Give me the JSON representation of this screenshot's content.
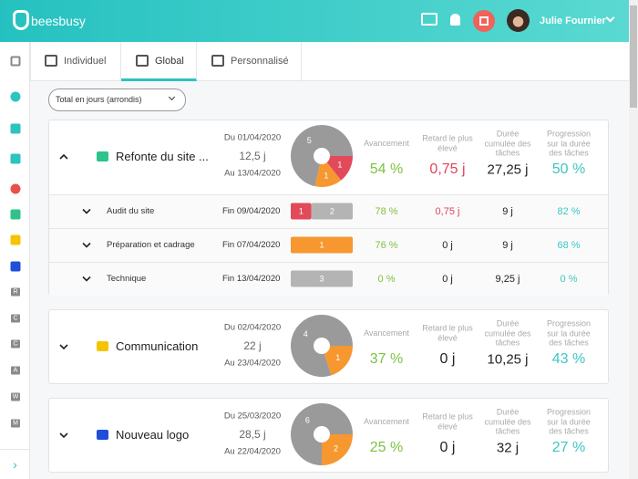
{
  "header": {
    "logo": "beesbusy",
    "user": "Julie Fournier"
  },
  "sidebar": {
    "letters": [
      "R",
      "C",
      "C",
      "A",
      "W",
      "M"
    ]
  },
  "tabs": [
    "Individuel",
    "Global",
    "Personnalisé"
  ],
  "filter": "Total en jours (arrondis)",
  "columns": [
    "Avancement",
    "Retard le plus élevé",
    "Durée cumulée des tâches",
    "Progression sur la durée des tâches"
  ],
  "projects": [
    {
      "name": "Refonte du site ...",
      "color": "#2dc38b",
      "start": "Du 01/04/2020",
      "duration": "12,5 j",
      "end": "Au 13/04/2020",
      "tasks": [
        {
          "count": 1,
          "color": "#e24a5a"
        },
        {
          "count": 1,
          "color": "#f7972f"
        },
        {
          "count": 5,
          "color": "#9a9a9a"
        }
      ],
      "stats": [
        "54 %",
        "0,75 j",
        "27,25 j",
        "50 %"
      ],
      "rows": [
        {
          "name": "Audit du site",
          "end": "Fin 09/04/2020",
          "tasks": [
            {
              "count": 1,
              "color": "#e24a5a"
            },
            {
              "count": 2,
              "color": "#b4b4b4"
            }
          ],
          "stats": [
            "78 %",
            "0,75 j",
            "9 j",
            "82 %"
          ]
        },
        {
          "name": "Préparation et cadrage",
          "end": "Fin 07/04/2020",
          "tasks": [
            {
              "count": 1,
              "color": "#f7972f"
            }
          ],
          "stats": [
            "76 %",
            "0 j",
            "9 j",
            "68 %"
          ]
        },
        {
          "name": "Technique",
          "end": "Fin 13/04/2020",
          "tasks": [
            {
              "count": 3,
              "color": "#b4b4b4"
            }
          ],
          "stats": [
            "0 %",
            "0 j",
            "9,25 j",
            "0 %"
          ]
        }
      ]
    },
    {
      "name": "Communication",
      "color": "#f5c400",
      "start": "Du 02/04/2020",
      "duration": "22 j",
      "end": "Au 23/04/2020",
      "tasks": [
        {
          "count": 1,
          "color": "#f7972f"
        },
        {
          "count": 4,
          "color": "#9a9a9a"
        }
      ],
      "stats": [
        "37 %",
        "0 j",
        "10,25 j",
        "43 %"
      ],
      "rows": []
    },
    {
      "name": "Nouveau logo",
      "color": "#1f4fd8",
      "start": "Du 25/03/2020",
      "duration": "28,5 j",
      "end": "Au 22/04/2020",
      "tasks": [
        {
          "count": 2,
          "color": "#f7972f"
        },
        {
          "count": 6,
          "color": "#9a9a9a"
        }
      ],
      "stats": [
        "25 %",
        "0 j",
        "32 j",
        "27 %"
      ],
      "rows": []
    }
  ]
}
